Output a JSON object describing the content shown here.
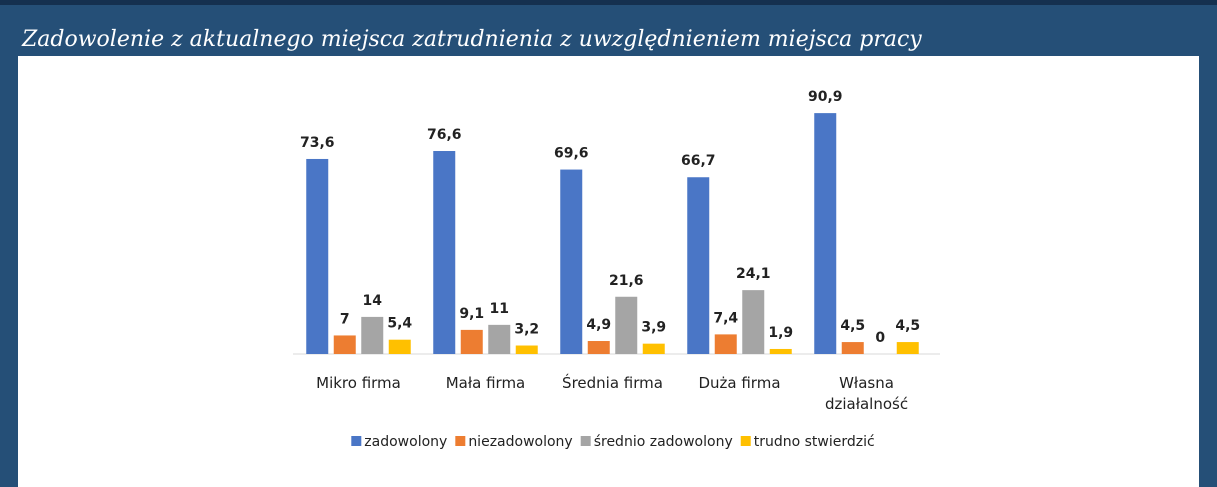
{
  "chart_data": {
    "type": "bar",
    "title": "Zadowolenie z aktualnego miejsca zatrudnienia z uwzględnieniem miejsca pracy",
    "categories": [
      "Mikro firma",
      "Mała firma",
      "Średnia firma",
      "Duża firma",
      "Własna działalność"
    ],
    "series": [
      {
        "name": "zadowolony",
        "color": "#4a76c6",
        "values": [
          73.6,
          76.6,
          69.6,
          66.7,
          90.9
        ],
        "value_labels": [
          "73,6",
          "76,6",
          "69,6",
          "66,7",
          "90,9"
        ]
      },
      {
        "name": "niezadowolony",
        "color": "#ed7d31",
        "values": [
          7,
          9.1,
          4.9,
          7.4,
          4.5
        ],
        "value_labels": [
          "7",
          "9,1",
          "4,9",
          "7,4",
          "4,5"
        ]
      },
      {
        "name": "średnio zadowolony",
        "color": "#a5a5a5",
        "values": [
          14,
          11,
          21.6,
          24.1,
          0
        ],
        "value_labels": [
          "14",
          "11",
          "21,6",
          "24,1",
          "0"
        ]
      },
      {
        "name": "trudno stwierdzić",
        "color": "#ffc000",
        "values": [
          5.4,
          3.2,
          3.9,
          1.9,
          4.5
        ],
        "value_labels": [
          "5,4",
          "3,2",
          "3,9",
          "1,9",
          "4,5"
        ]
      }
    ],
    "ylim": [
      0,
      100
    ],
    "legend": "bottom"
  }
}
